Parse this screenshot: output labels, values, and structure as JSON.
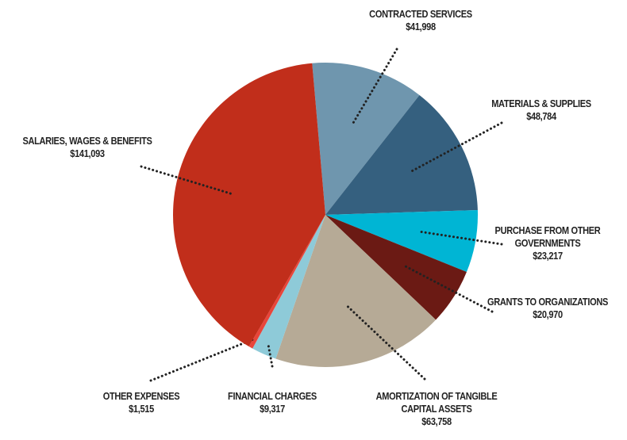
{
  "chart_data": {
    "type": "pie",
    "categories": [
      "CONTRACTED SERVICES",
      "MATERIALS & SUPPLIES",
      "PURCHASE FROM OTHER GOVERNMENTS",
      "GRANTS TO ORGANIZATIONS",
      "AMORTIZATION OF TANGIBLE CAPITAL ASSETS",
      "FINANCIAL CHARGES",
      "OTHER EXPENSES",
      "SALARIES, WAGES & BENEFITS"
    ],
    "values": [
      41998,
      48784,
      23217,
      20970,
      63758,
      9317,
      1515,
      141093
    ],
    "value_labels": [
      "$41,998",
      "$48,784",
      "$23,217",
      "$20,970",
      "$63,758",
      "$9,317",
      "$1,515",
      "$141,093"
    ],
    "colors": [
      "#6f96ae",
      "#35607f",
      "#00b5d4",
      "#6b1a14",
      "#b6aa96",
      "#8ecad8",
      "#e8453a",
      "#c12e1b"
    ]
  }
}
